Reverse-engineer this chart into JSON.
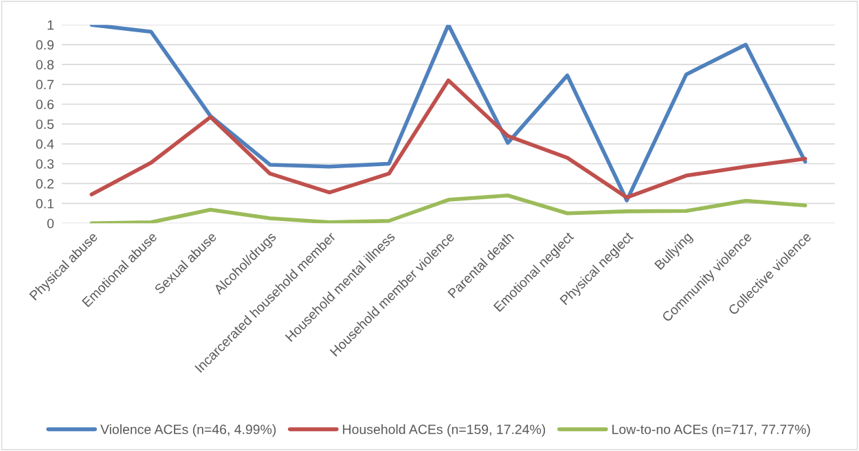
{
  "chart_data": {
    "type": "line",
    "categories": [
      "Physical abuse",
      "Emotional abuse",
      "Sexual abuse",
      "Alcohol/drugs",
      "Incarcerated household member",
      "Household mental illness",
      "Household member violence",
      "Parental death",
      "Emotional neglect",
      "Physical neglect",
      "Bullying",
      "Community violence",
      "Collective violence"
    ],
    "series": [
      {
        "name": "Violence ACEs (n=46, 4.99%)",
        "color": "#4f81bd",
        "values": [
          1.0,
          0.965,
          0.54,
          0.295,
          0.285,
          0.3,
          1.0,
          0.405,
          0.745,
          0.115,
          0.75,
          0.9,
          0.31
        ]
      },
      {
        "name": "Household ACEs (n=159, 17.24%)",
        "color": "#c0504d",
        "values": [
          0.145,
          0.305,
          0.535,
          0.25,
          0.155,
          0.25,
          0.72,
          0.44,
          0.33,
          0.13,
          0.24,
          0.285,
          0.325
        ]
      },
      {
        "name": "Low-to-no ACEs (n=717, 77.77%)",
        "color": "#9bbb59",
        "values": [
          0.0,
          0.005,
          0.068,
          0.025,
          0.005,
          0.012,
          0.118,
          0.14,
          0.05,
          0.06,
          0.062,
          0.113,
          0.09
        ]
      }
    ],
    "ylim": [
      0,
      1
    ],
    "yticks": [
      0,
      0.1,
      0.2,
      0.3,
      0.4,
      0.5,
      0.6,
      0.7,
      0.8,
      0.9,
      1
    ],
    "grid": "y",
    "legend": "bottom",
    "marker": "none",
    "line_style": "solid"
  }
}
